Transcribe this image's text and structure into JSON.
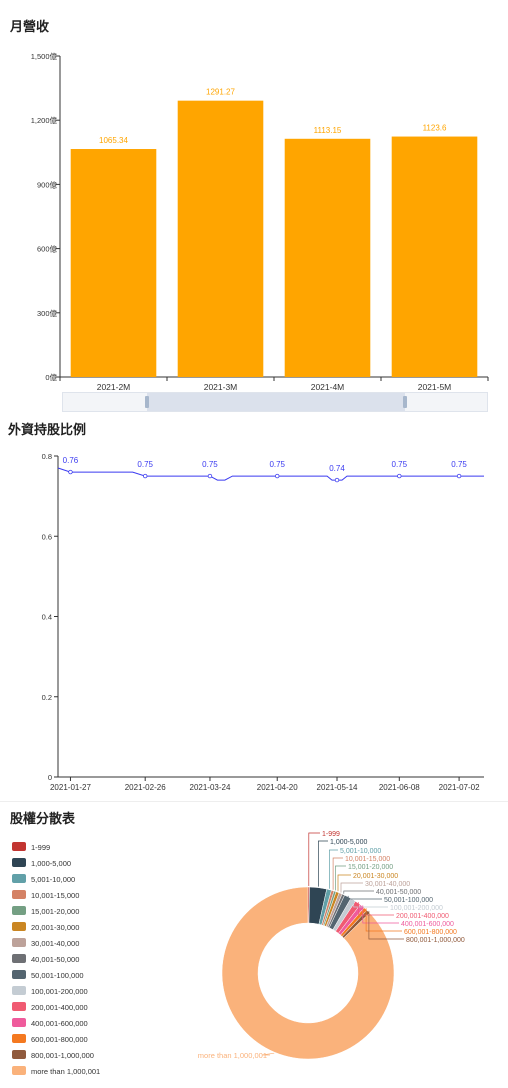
{
  "revenue_title": "月營收",
  "foreign_title": "外資持股比例",
  "holders_title": "股權分散表",
  "chart_data": [
    {
      "type": "bar",
      "title": "月營收",
      "categories": [
        "2021-2M",
        "2021-3M",
        "2021-4M",
        "2021-5M"
      ],
      "values": [
        1065.34,
        1291.27,
        1113.15,
        1123.6
      ],
      "value_labels": [
        "1065.34",
        "1291.27",
        "1113.15",
        "1123.6"
      ],
      "ylim": [
        0,
        1500
      ],
      "yticks": [
        0,
        300,
        600,
        900,
        1200,
        1500
      ],
      "ytick_labels": [
        "0億",
        "300億",
        "600億",
        "900億",
        "1,200億",
        "1,500億"
      ],
      "color": "#ffa500",
      "grid": false
    },
    {
      "type": "line",
      "title": "外資持股比例",
      "x": [
        "2021-01-22",
        "2021-01-27",
        "2021-02-01",
        "2021-02-06",
        "2021-02-11",
        "2021-02-16",
        "2021-02-21",
        "2021-02-26",
        "2021-03-03",
        "2021-03-08",
        "2021-03-13",
        "2021-03-18",
        "2021-03-24",
        "2021-03-27",
        "2021-03-30",
        "2021-04-02",
        "2021-04-07",
        "2021-04-12",
        "2021-04-16",
        "2021-04-20",
        "2021-04-25",
        "2021-04-30",
        "2021-05-05",
        "2021-05-10",
        "2021-05-12",
        "2021-05-14",
        "2021-05-16",
        "2021-05-18",
        "2021-05-23",
        "2021-05-28",
        "2021-06-03",
        "2021-06-08",
        "2021-06-13",
        "2021-06-18",
        "2021-06-23",
        "2021-06-28",
        "2021-07-02",
        "2021-07-07",
        "2021-07-12"
      ],
      "values": [
        0.77,
        0.76,
        0.76,
        0.76,
        0.76,
        0.76,
        0.76,
        0.75,
        0.75,
        0.75,
        0.75,
        0.75,
        0.75,
        0.74,
        0.74,
        0.75,
        0.75,
        0.75,
        0.75,
        0.75,
        0.75,
        0.75,
        0.75,
        0.75,
        0.74,
        0.74,
        0.74,
        0.75,
        0.75,
        0.75,
        0.75,
        0.75,
        0.75,
        0.75,
        0.75,
        0.75,
        0.75,
        0.75,
        0.75
      ],
      "xtick_labels": [
        "2021-01-27",
        "2021-02-26",
        "2021-03-24",
        "2021-04-20",
        "2021-05-14",
        "2021-06-08",
        "2021-07-02"
      ],
      "point_labels": [
        {
          "x": "2021-01-27",
          "label": "0.76"
        },
        {
          "x": "2021-02-26",
          "label": "0.75"
        },
        {
          "x": "2021-03-24",
          "label": "0.75"
        },
        {
          "x": "2021-04-20",
          "label": "0.75"
        },
        {
          "x": "2021-05-14",
          "label": "0.74"
        },
        {
          "x": "2021-06-08",
          "label": "0.75"
        },
        {
          "x": "2021-07-02",
          "label": "0.75"
        }
      ],
      "ylim": [
        0,
        0.8
      ],
      "yticks": [
        0,
        0.2,
        0.4,
        0.6,
        0.8
      ],
      "ytick_labels": [
        "0",
        "0.2",
        "0.4",
        "0.6",
        "0.8"
      ],
      "color": "#3a3af0",
      "grid": false
    },
    {
      "type": "pie",
      "title": "股權分散表",
      "legend_position": "left",
      "slices": [
        {
          "label": "1-999",
          "value": 0.3,
          "color": "#c23531"
        },
        {
          "label": "1,000-5,000",
          "value": 3.2,
          "color": "#2f4554"
        },
        {
          "label": "5,001-10,000",
          "value": 0.9,
          "color": "#61a0a8"
        },
        {
          "label": "10,001-15,000",
          "value": 0.5,
          "color": "#d48265"
        },
        {
          "label": "15,001-20,000",
          "value": 0.4,
          "color": "#749f83"
        },
        {
          "label": "20,001-30,000",
          "value": 0.6,
          "color": "#ca8622"
        },
        {
          "label": "30,001-40,000",
          "value": 0.6,
          "color": "#bda29a"
        },
        {
          "label": "40,001-50,000",
          "value": 0.5,
          "color": "#6e7074"
        },
        {
          "label": "50,001-100,000",
          "value": 1.3,
          "color": "#546570"
        },
        {
          "label": "100,001-200,000",
          "value": 1.0,
          "color": "#c4ccd3"
        },
        {
          "label": "200,001-400,000",
          "value": 1.1,
          "color": "#f05b72"
        },
        {
          "label": "400,001-600,000",
          "value": 0.9,
          "color": "#ef5b9c"
        },
        {
          "label": "600,001-800,000",
          "value": 0.7,
          "color": "#f47920"
        },
        {
          "label": "800,001-1,000,000",
          "value": 0.7,
          "color": "#905a3d"
        },
        {
          "label": "more than 1,000,001",
          "value": 87.3,
          "color": "#fab27b"
        }
      ]
    }
  ]
}
